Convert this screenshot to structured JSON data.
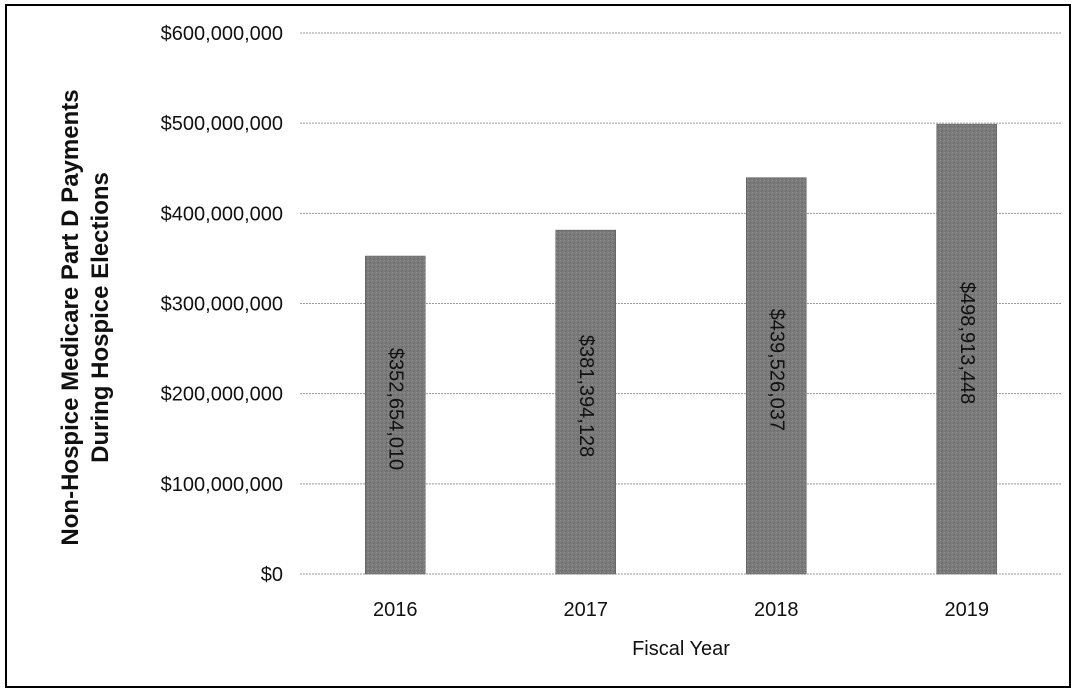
{
  "chart_data": {
    "type": "bar",
    "title": "",
    "xlabel": "Fiscal Year",
    "ylabel_lines": [
      "Non-Hospice Medicare Part D Payments",
      "During Hospice Elections"
    ],
    "categories": [
      "2016",
      "2017",
      "2018",
      "2019"
    ],
    "values": [
      352654010,
      381394128,
      439526037,
      498913448
    ],
    "data_labels": [
      "$352,654,010",
      "$381,394,128",
      "$439,526,037",
      "$498,913,448"
    ],
    "ylim": [
      0,
      600000000
    ],
    "yticks": [
      0,
      100000000,
      200000000,
      300000000,
      400000000,
      500000000,
      600000000
    ],
    "ytick_labels": [
      "$0",
      "$100,000,000",
      "$200,000,000",
      "$300,000,000",
      "$400,000,000",
      "$500,000,000",
      "$600,000,000"
    ],
    "grid": true,
    "legend": "none",
    "bar_color": "#7a7a7a",
    "data_label_orientation": "vertical"
  }
}
